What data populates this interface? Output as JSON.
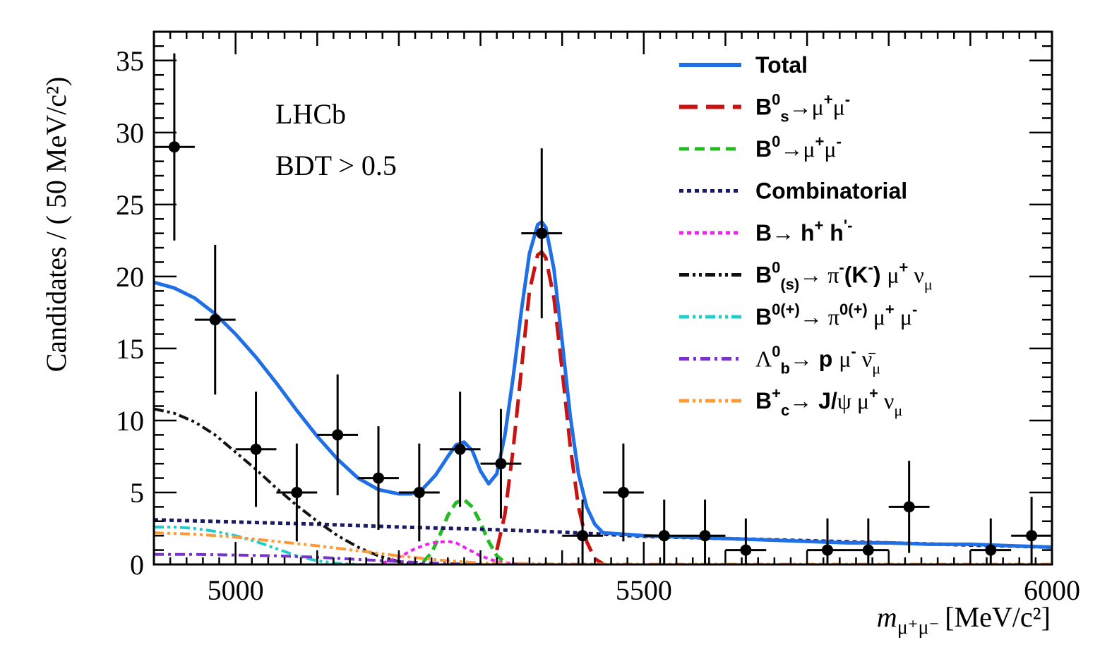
{
  "chart_data": {
    "type": "line",
    "title": "",
    "xlabel": "[MeV/c²]",
    "xlabel_var": "m",
    "xlabel_sub": "μ⁺μ⁻",
    "ylabel": "Candidates / ( 50 MeV/c²)",
    "xlim": [
      4900,
      6000
    ],
    "ylim": [
      0,
      37
    ],
    "x_ticks": [
      5000,
      5500,
      6000
    ],
    "y_ticks": [
      0,
      5,
      10,
      15,
      20,
      25,
      30,
      35
    ],
    "grid": false,
    "legend_position": "top-right",
    "annotations": [
      "LHCb",
      "BDT > 0.5"
    ],
    "data_points": {
      "name": "data",
      "x_halfwidth": 25,
      "points": [
        {
          "x": 4925,
          "y": 29,
          "err": 6.5
        },
        {
          "x": 4975,
          "y": 17,
          "err": 5.2
        },
        {
          "x": 5025,
          "y": 8,
          "err": 4.0
        },
        {
          "x": 5075,
          "y": 5,
          "err": 3.4
        },
        {
          "x": 5125,
          "y": 9,
          "err": 4.2
        },
        {
          "x": 5175,
          "y": 6,
          "err": 3.6
        },
        {
          "x": 5225,
          "y": 5,
          "err": 3.4
        },
        {
          "x": 5275,
          "y": 8,
          "err": 4.0
        },
        {
          "x": 5325,
          "y": 7,
          "err": 3.8
        },
        {
          "x": 5375,
          "y": 23,
          "err": 5.9
        },
        {
          "x": 5425,
          "y": 2,
          "err": 2.5
        },
        {
          "x": 5475,
          "y": 5,
          "err": 3.4
        },
        {
          "x": 5525,
          "y": 2,
          "err": 2.5
        },
        {
          "x": 5575,
          "y": 2,
          "err": 2.5
        },
        {
          "x": 5625,
          "y": 1,
          "err": 2.2
        },
        {
          "x": 5725,
          "y": 1,
          "err": 2.2
        },
        {
          "x": 5775,
          "y": 1,
          "err": 2.2
        },
        {
          "x": 5825,
          "y": 4,
          "err": 3.2
        },
        {
          "x": 5925,
          "y": 1,
          "err": 2.2
        },
        {
          "x": 5975,
          "y": 2,
          "err": 2.7
        }
      ]
    },
    "series": [
      {
        "name": "Total",
        "color": "#1f6fe6",
        "style": "solid",
        "width": 5,
        "x": [
          4900,
          4925,
          4950,
          4975,
          5000,
          5025,
          5050,
          5075,
          5100,
          5125,
          5150,
          5175,
          5200,
          5215,
          5230,
          5245,
          5260,
          5270,
          5280,
          5290,
          5300,
          5310,
          5320,
          5330,
          5340,
          5350,
          5360,
          5370,
          5375,
          5380,
          5390,
          5400,
          5410,
          5420,
          5430,
          5440,
          5450,
          5475,
          5500,
          5550,
          5600,
          5650,
          5700,
          5750,
          5800,
          5850,
          5900,
          5950,
          6000
        ],
        "y": [
          19.6,
          19.2,
          18.5,
          17.4,
          16.0,
          14.4,
          12.6,
          10.7,
          8.9,
          7.3,
          6.0,
          5.2,
          4.9,
          4.9,
          5.3,
          6.2,
          7.5,
          8.3,
          8.5,
          7.9,
          6.5,
          5.6,
          6.3,
          9.0,
          13.0,
          17.6,
          21.6,
          23.6,
          23.8,
          23.4,
          20.5,
          15.5,
          10.3,
          6.3,
          4.0,
          2.8,
          2.2,
          2.1,
          2.0,
          1.9,
          1.8,
          1.7,
          1.6,
          1.5,
          1.5,
          1.4,
          1.4,
          1.3,
          1.2
        ]
      },
      {
        "name": "B⁰s→μ⁺μ⁻",
        "color": "#cc1111",
        "style": "longdash",
        "width": 5,
        "x": [
          5320,
          5330,
          5340,
          5350,
          5360,
          5370,
          5375,
          5380,
          5390,
          5400,
          5410,
          5420,
          5430,
          5440,
          5450
        ],
        "y": [
          1.0,
          3.5,
          8.0,
          13.5,
          19.0,
          21.5,
          21.7,
          21.3,
          18.5,
          13.5,
          8.2,
          4.0,
          1.6,
          0.4,
          0.05
        ]
      },
      {
        "name": "B⁰→μ⁺μ⁻",
        "color": "#22bb22",
        "style": "dash",
        "width": 5,
        "x": [
          5230,
          5240,
          5250,
          5260,
          5270,
          5280,
          5290,
          5300,
          5310,
          5320,
          5330
        ],
        "y": [
          0.2,
          0.8,
          2.0,
          3.4,
          4.3,
          4.5,
          4.0,
          2.9,
          1.6,
          0.6,
          0.15
        ]
      },
      {
        "name": "Combinatorial",
        "color": "#1a1a66",
        "style": "dot",
        "width": 5,
        "x": [
          4900,
          5000,
          5100,
          5200,
          5300,
          5400,
          5500,
          5600,
          5700,
          5800,
          5900,
          6000
        ],
        "y": [
          3.1,
          2.95,
          2.8,
          2.6,
          2.45,
          2.25,
          1.95,
          1.8,
          1.65,
          1.5,
          1.35,
          1.2
        ]
      },
      {
        "name": "B→ h⁺ h'⁻",
        "color": "#ee22ee",
        "style": "dot",
        "width": 4,
        "x": [
          5180,
          5200,
          5220,
          5240,
          5260,
          5270,
          5280,
          5300,
          5320,
          5340,
          5360
        ],
        "y": [
          0.1,
          0.5,
          1.1,
          1.5,
          1.6,
          1.5,
          1.2,
          0.6,
          0.2,
          0.05,
          0.0
        ]
      },
      {
        "name": "B⁰(s)→ π⁻(K⁻) μ⁺ νμ",
        "color": "#111111",
        "style": "dashdotdot",
        "width": 4,
        "x": [
          4900,
          4925,
          4950,
          4975,
          5000,
          5025,
          5050,
          5075,
          5100,
          5125,
          5150,
          5175,
          5200,
          5215,
          5230
        ],
        "y": [
          10.8,
          10.5,
          9.9,
          9.0,
          7.8,
          6.6,
          5.3,
          4.1,
          3.0,
          2.0,
          1.2,
          0.6,
          0.2,
          0.08,
          0.0
        ]
      },
      {
        "name": "B⁰(+)→ π⁰(+) μ⁺ μ⁻",
        "color": "#22cccc",
        "style": "dashdotdot",
        "width": 4,
        "x": [
          4900,
          4925,
          4950,
          4975,
          5000,
          5025,
          5050,
          5075,
          5100,
          5125,
          5150
        ],
        "y": [
          2.6,
          2.6,
          2.5,
          2.3,
          2.0,
          1.6,
          1.1,
          0.6,
          0.25,
          0.08,
          0.0
        ]
      },
      {
        "name": "Λ⁰b→ p μ⁻ ν̄μ",
        "color": "#7733cc",
        "style": "dashdot",
        "width": 4,
        "x": [
          4900,
          4950,
          5000,
          5050,
          5100,
          5150,
          5200,
          5250,
          5300
        ],
        "y": [
          0.7,
          0.7,
          0.65,
          0.6,
          0.5,
          0.35,
          0.2,
          0.08,
          0.0
        ]
      },
      {
        "name": "B⁺c→ J/ψ μ⁺ νμ",
        "color": "#ff9933",
        "style": "dashdotdot",
        "width": 4,
        "x": [
          4900,
          4950,
          5000,
          5050,
          5100,
          5150,
          5200,
          5250,
          5300,
          5400,
          5500,
          5600,
          5700,
          5800,
          5900,
          6000
        ],
        "y": [
          2.2,
          2.1,
          1.9,
          1.6,
          1.3,
          0.95,
          0.6,
          0.3,
          0.1,
          0.03,
          0.02,
          0.02,
          0.02,
          0.02,
          0.02,
          0.02
        ]
      }
    ]
  },
  "legend": [
    {
      "key": "total",
      "color": "#1f6fe6",
      "style": "solid",
      "parts": [
        {
          "t": "Total"
        }
      ]
    },
    {
      "key": "bs",
      "color": "#cc1111",
      "style": "longdash",
      "parts": [
        {
          "t": "B"
        },
        {
          "t": "0",
          "sup": true
        },
        {
          "t": "s",
          "sub": true
        },
        {
          "t": "→μ",
          "greek": true
        },
        {
          "t": "+",
          "sup": true
        },
        {
          "t": "μ",
          "greek": true
        },
        {
          "t": "-",
          "sup": true
        }
      ]
    },
    {
      "key": "bd",
      "color": "#22bb22",
      "style": "dash",
      "parts": [
        {
          "t": "B"
        },
        {
          "t": "0",
          "sup": true
        },
        {
          "t": "→μ",
          "greek": true
        },
        {
          "t": "+",
          "sup": true
        },
        {
          "t": "μ",
          "greek": true
        },
        {
          "t": "-",
          "sup": true
        }
      ]
    },
    {
      "key": "comb",
      "color": "#1a1a66",
      "style": "dot",
      "parts": [
        {
          "t": "Combinatorial"
        }
      ]
    },
    {
      "key": "hh",
      "color": "#ee22ee",
      "style": "dot",
      "parts": [
        {
          "t": "B→ h"
        },
        {
          "t": "+",
          "sup": true
        },
        {
          "t": " h"
        },
        {
          "t": "'-",
          "sup": true
        }
      ]
    },
    {
      "key": "pimunu",
      "color": "#111111",
      "style": "dashdotdot",
      "parts": [
        {
          "t": "B"
        },
        {
          "t": "0",
          "sup": true
        },
        {
          "t": "(s)",
          "sub": true
        },
        {
          "t": "→ π",
          "greek": true
        },
        {
          "t": "-",
          "sup": true
        },
        {
          "t": "(K"
        },
        {
          "t": "-",
          "sup": true
        },
        {
          "t": ")  "
        },
        {
          "t": "μ",
          "greek": true
        },
        {
          "t": "+",
          "sup": true
        },
        {
          "t": "  ν",
          "greek": true
        },
        {
          "t": "μ",
          "sub": true,
          "greek": true
        }
      ]
    },
    {
      "key": "pimumu",
      "color": "#22cccc",
      "style": "dashdotdot",
      "parts": [
        {
          "t": "B"
        },
        {
          "t": "0(+)",
          "sup": true
        },
        {
          "t": "→  π",
          "greek": true
        },
        {
          "t": "0(+)",
          "sup": true
        },
        {
          "t": "  μ",
          "greek": true
        },
        {
          "t": "+",
          "sup": true
        },
        {
          "t": "  μ",
          "greek": true
        },
        {
          "t": "-",
          "sup": true
        }
      ]
    },
    {
      "key": "lambda",
      "color": "#7733cc",
      "style": "dashdot",
      "parts": [
        {
          "t": "Λ",
          "greek": true
        },
        {
          "t": "0",
          "sup": true
        },
        {
          "t": "b",
          "sub": true
        },
        {
          "t": "→ p  "
        },
        {
          "t": "μ",
          "greek": true
        },
        {
          "t": "-",
          "sup": true
        },
        {
          "t": "  ν̄",
          "greek": true
        },
        {
          "t": "μ",
          "sub": true,
          "greek": true
        }
      ]
    },
    {
      "key": "bc",
      "color": "#ff9933",
      "style": "dashdotdot",
      "parts": [
        {
          "t": "B"
        },
        {
          "t": "+",
          "sup": true
        },
        {
          "t": "c",
          "sub": true
        },
        {
          "t": "→ J/"
        },
        {
          "t": "ψ  μ",
          "greek": true
        },
        {
          "t": "+",
          "sup": true
        },
        {
          "t": "  ν",
          "greek": true
        },
        {
          "t": "μ",
          "sub": true,
          "greek": true
        }
      ]
    }
  ]
}
